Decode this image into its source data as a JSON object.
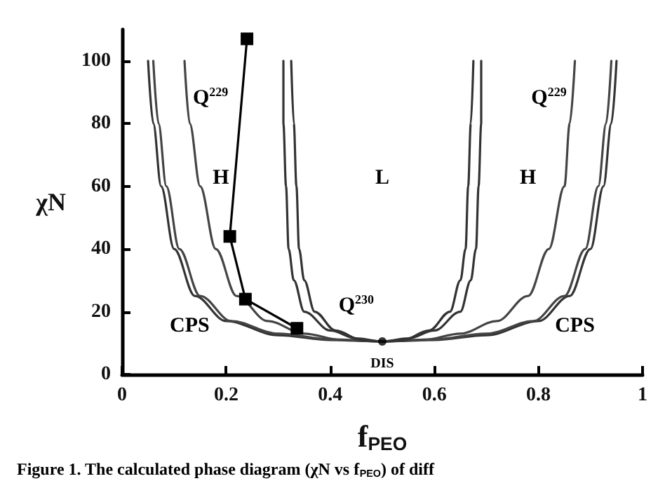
{
  "chart_data": {
    "type": "line",
    "xlabel": "f$_{PEO}$",
    "ylabel": "χN",
    "xlim": [
      0,
      1
    ],
    "xticks": [
      0,
      0.2,
      0.4,
      0.6,
      0.8,
      1
    ],
    "ylim": [
      0,
      110
    ],
    "yticks": [
      0,
      20,
      40,
      60,
      80,
      100
    ],
    "grid": false,
    "line_style": "solid",
    "marker": "none",
    "series": [
      {
        "color": "#333333",
        "x": [
          0.05,
          0.06,
          0.075,
          0.1,
          0.14,
          0.2,
          0.3,
          0.4,
          0.5,
          0.6,
          0.7,
          0.8,
          0.86,
          0.9,
          0.925,
          0.94,
          0.95
        ],
        "values": [
          100,
          80,
          60,
          40,
          25,
          17,
          12.5,
          11,
          10.5,
          11,
          12.5,
          17,
          25,
          40,
          60,
          80,
          100
        ]
      },
      {
        "color": "#444444",
        "x": [
          0.06,
          0.07,
          0.085,
          0.11,
          0.15,
          0.21,
          0.3,
          0.4,
          0.5,
          0.6,
          0.7,
          0.79,
          0.85,
          0.89,
          0.915,
          0.93,
          0.94
        ],
        "values": [
          100,
          80,
          60,
          40,
          25,
          17,
          13,
          11.2,
          10.5,
          11.2,
          13,
          17,
          25,
          40,
          60,
          80,
          100
        ]
      },
      {
        "color": "#444444",
        "x": [
          0.12,
          0.13,
          0.15,
          0.18,
          0.22,
          0.28,
          0.35,
          0.42,
          0.5,
          0.58,
          0.65,
          0.72,
          0.78,
          0.82,
          0.85,
          0.86,
          0.87
        ],
        "values": [
          100,
          80,
          60,
          40,
          25,
          17,
          13,
          11,
          10.5,
          11,
          13,
          17,
          25,
          40,
          60,
          80,
          100
        ]
      },
      {
        "color": "#333333",
        "x": [
          0.31,
          0.31,
          0.315,
          0.32,
          0.33,
          0.35,
          0.4,
          0.45,
          0.5,
          0.55,
          0.6,
          0.65,
          0.67,
          0.68,
          0.685,
          0.69,
          0.69
        ],
        "values": [
          100,
          80,
          60,
          40,
          30,
          20,
          14,
          11.5,
          10.5,
          11.5,
          14,
          20,
          30,
          40,
          60,
          80,
          100
        ]
      },
      {
        "color": "#333333",
        "x": [
          0.325,
          0.33,
          0.335,
          0.34,
          0.35,
          0.37,
          0.41,
          0.46,
          0.5,
          0.54,
          0.59,
          0.63,
          0.65,
          0.66,
          0.665,
          0.67,
          0.675
        ],
        "values": [
          100,
          80,
          60,
          40,
          30,
          20,
          14,
          11,
          10.5,
          11,
          14,
          20,
          30,
          40,
          60,
          80,
          100
        ]
      },
      {
        "color": "#000000",
        "type": "line",
        "marker": "square",
        "x": [
          0.24,
          0.207,
          0.237,
          0.336
        ],
        "values": [
          107,
          44,
          24,
          14.7
        ]
      },
      {
        "color": "#000000",
        "type": "scatter",
        "marker": "circle",
        "x": [
          0.5
        ],
        "values": [
          10.5
        ]
      }
    ],
    "annotations": [
      "H",
      "L",
      "H",
      "Q$^{229}$",
      "Q$^{229}$",
      "Q$^{230}$",
      "CPS",
      "CPS",
      "DIS",
      "Figure 1. The calculated phase diagram (χN vs f$_{PEO}$) of diff"
    ]
  }
}
